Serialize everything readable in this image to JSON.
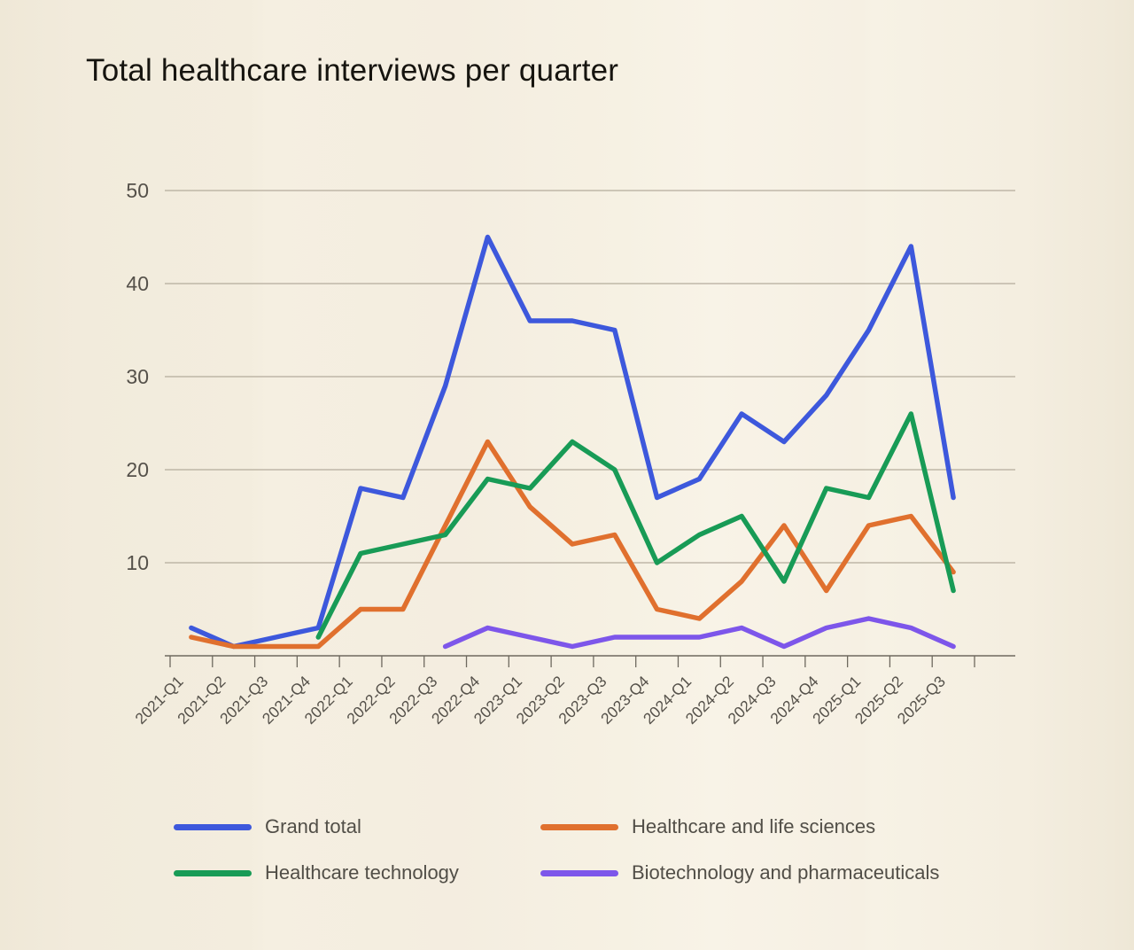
{
  "title": "Total healthcare interviews per quarter",
  "chart_data": {
    "type": "line",
    "title": "Total healthcare interviews per quarter",
    "xlabel": "",
    "ylabel": "",
    "ylim": [
      0,
      50
    ],
    "y_ticks": [
      10,
      20,
      30,
      40,
      50
    ],
    "grid": true,
    "legend_position": "bottom",
    "categories": [
      "2021-Q1",
      "2021-Q2",
      "2021-Q3",
      "2021-Q4",
      "2022-Q1",
      "2022-Q2",
      "2022-Q3",
      "2022-Q4",
      "2023-Q1",
      "2023-Q2",
      "2023-Q3",
      "2023-Q4",
      "2024-Q1",
      "2024-Q2",
      "2024-Q3",
      "2024-Q4",
      "2025-Q1",
      "2025-Q2",
      "2025-Q3"
    ],
    "series": [
      {
        "name": "Grand total",
        "color": "#3d58dc",
        "values": [
          3,
          1,
          2,
          3,
          18,
          17,
          29,
          45,
          36,
          36,
          35,
          17,
          19,
          26,
          23,
          28,
          35,
          44,
          17
        ]
      },
      {
        "name": "Healthcare and life sciences",
        "color": "#e0702e",
        "values": [
          2,
          1,
          1,
          1,
          5,
          5,
          14,
          23,
          16,
          12,
          13,
          5,
          4,
          8,
          14,
          7,
          14,
          15,
          9
        ]
      },
      {
        "name": "Healthcare technology",
        "color": "#189b56",
        "values": [
          null,
          null,
          null,
          2,
          11,
          12,
          13,
          19,
          18,
          23,
          20,
          10,
          13,
          15,
          8,
          18,
          17,
          26,
          7
        ]
      },
      {
        "name": "Biotechnology and pharmaceuticals",
        "color": "#7d56ea",
        "values": [
          null,
          null,
          null,
          null,
          null,
          null,
          1,
          3,
          2,
          1,
          2,
          2,
          2,
          3,
          1,
          3,
          4,
          3,
          1
        ]
      }
    ]
  }
}
